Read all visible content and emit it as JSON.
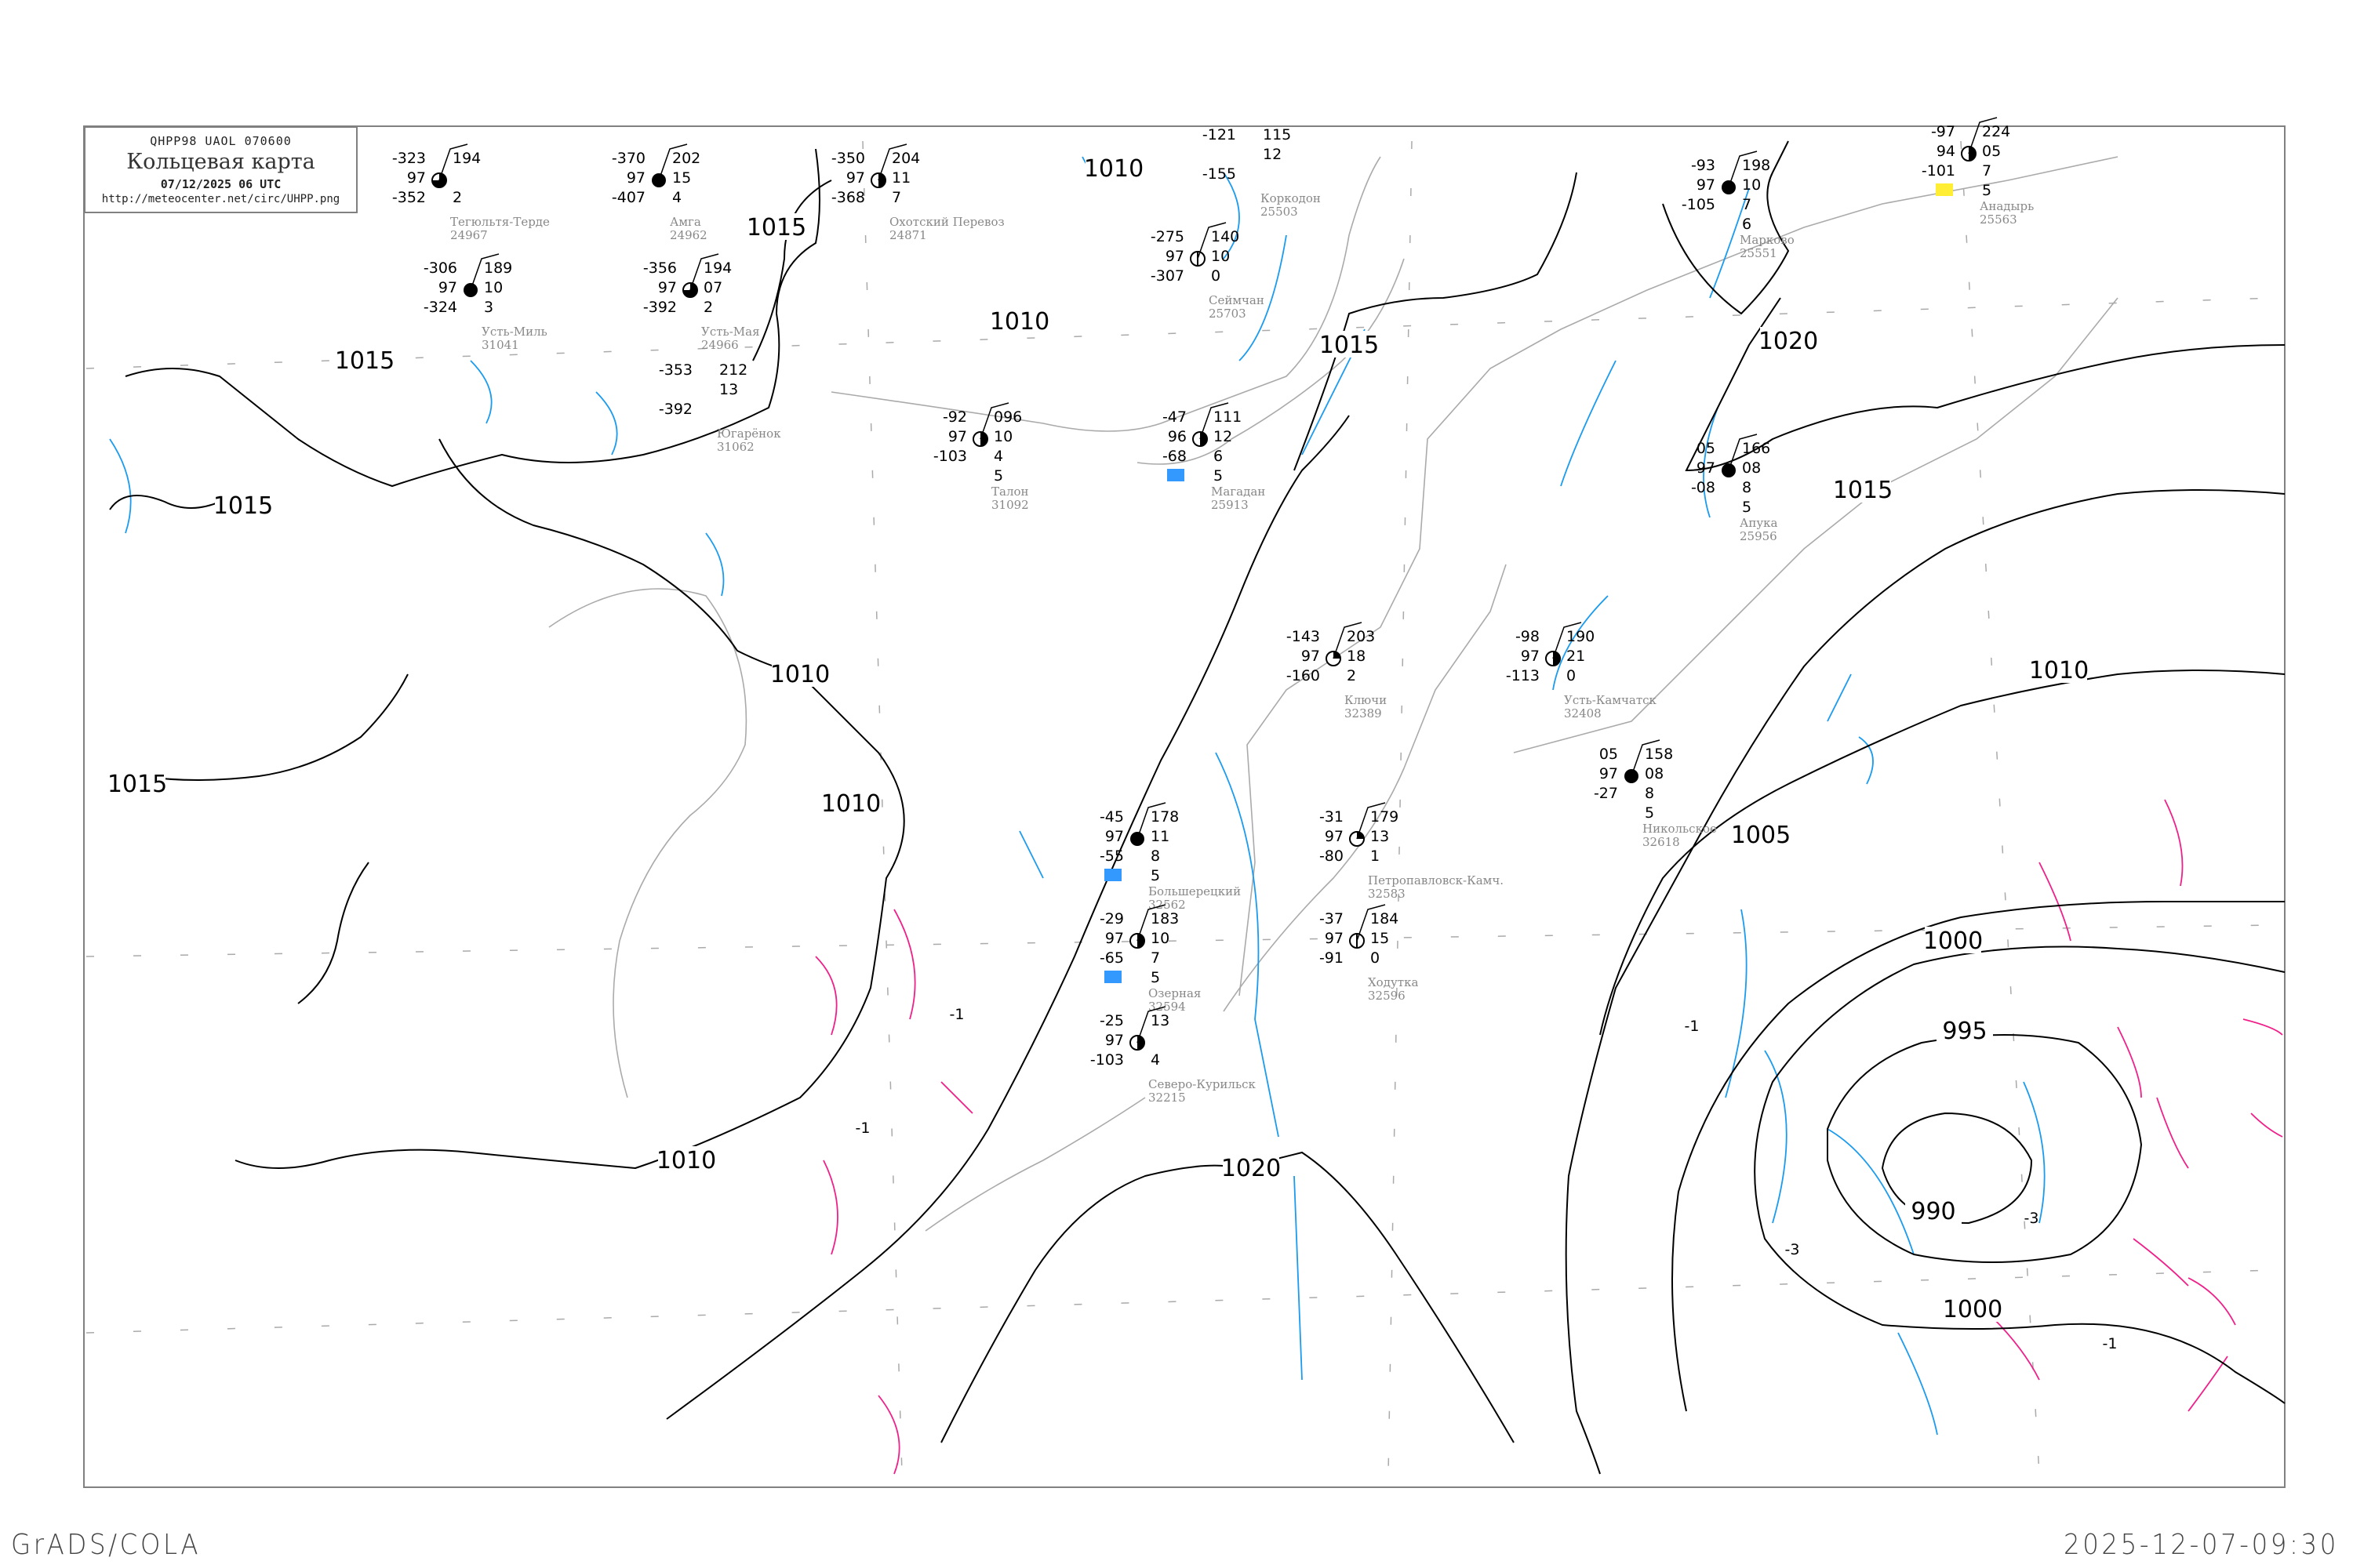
{
  "header": {
    "code_line": "QHPP98   UAOL   070600",
    "title": "Кольцевая карта",
    "datetime": "07/12/2025 06 UTC",
    "url": "http://meteocenter.net/circ/UHPP.png"
  },
  "footer": {
    "left": "GrADS/COLA",
    "right": "2025-12-07-09:30"
  },
  "colors": {
    "isobar": "#000000",
    "coastline": "#aaaaaa",
    "isotherm_negative": "#1a9bef",
    "isotherm_positive": "#f0208a",
    "snow_marker": "#3399ff",
    "frame": "#808080"
  },
  "isobar_labels": [
    "1010",
    "1015",
    "1015",
    "1015",
    "1015",
    "1010",
    "1010",
    "1010",
    "1010",
    "1015",
    "1020",
    "1015",
    "1010",
    "1005",
    "1000",
    "995",
    "990",
    "1000",
    "1020"
  ],
  "isotherm_labels": [
    "-1",
    "-1",
    "-1",
    "-3",
    "-3",
    "-1"
  ],
  "stations": [
    {
      "name": "Анадырь",
      "id": "25563",
      "left": [
        "-97",
        "94",
        "-101"
      ],
      "right": [
        "224",
        "05",
        "7",
        "5"
      ],
      "cloud": "half",
      "marker": "yellow"
    },
    {
      "name": "Марково",
      "id": "25551",
      "left": [
        "-93",
        "97",
        "-105"
      ],
      "right": [
        "198",
        "10",
        "7",
        "6"
      ],
      "cloud": "full"
    },
    {
      "name": "Апука",
      "id": "25956",
      "left": [
        "05",
        "97",
        "-08"
      ],
      "right": [
        "166",
        "08",
        "8",
        "5"
      ],
      "cloud": "full"
    },
    {
      "name": "Коркодон",
      "id": "25503",
      "left": [
        "-121",
        "",
        "-155"
      ],
      "right": [
        "115",
        "12"
      ],
      "cloud": "none"
    },
    {
      "name": "Сеймчан",
      "id": "25703",
      "left": [
        "-275",
        "97",
        "-307"
      ],
      "right": [
        "140",
        "10",
        "0"
      ],
      "cloud": "empty"
    },
    {
      "name": "Магадан",
      "id": "25913",
      "left": [
        "-47",
        "96",
        "-68"
      ],
      "right": [
        "111",
        "12",
        "6",
        "5"
      ],
      "cloud": "half",
      "marker": "blue"
    },
    {
      "name": "Талон",
      "id": "31092",
      "left": [
        "-92",
        "97",
        "-103"
      ],
      "right": [
        "096",
        "10",
        "4",
        "5"
      ],
      "cloud": "half"
    },
    {
      "name": "Охотский Перевоз",
      "id": "24871",
      "left": [
        "-350",
        "97",
        "-368"
      ],
      "right": [
        "204",
        "11",
        "7"
      ],
      "cloud": "half"
    },
    {
      "name": "Тегюльтя-Терде",
      "id": "24967",
      "left": [
        "-323",
        "97",
        "-352"
      ],
      "right": [
        "194",
        "",
        "2"
      ],
      "cloud": "three"
    },
    {
      "name": "Амга",
      "id": "24962",
      "left": [
        "-370",
        "97",
        "-407"
      ],
      "right": [
        "202",
        "15",
        "4"
      ],
      "cloud": "full"
    },
    {
      "name": "Усть-Мая",
      "id": "24966",
      "left": [
        "-356",
        "97",
        "-392"
      ],
      "right": [
        "194",
        "07",
        "2"
      ],
      "cloud": "three"
    },
    {
      "name": "Усть-Миль",
      "id": "31041",
      "left": [
        "-306",
        "97",
        "-324"
      ],
      "right": [
        "189",
        "10",
        "3"
      ],
      "cloud": "full"
    },
    {
      "name": "Югарёнок",
      "id": "31062",
      "left": [
        "-353",
        "",
        "-392"
      ],
      "right": [
        "212",
        "13"
      ],
      "cloud": "none"
    },
    {
      "name": "Ключи",
      "id": "32389",
      "left": [
        "-143",
        "97",
        "-160"
      ],
      "right": [
        "203",
        "18",
        "2"
      ],
      "cloud": "quarter"
    },
    {
      "name": "Усть-Камчатск",
      "id": "32408",
      "left": [
        "-98",
        "97",
        "-113"
      ],
      "right": [
        "190",
        "21",
        "0"
      ],
      "cloud": "half"
    },
    {
      "name": "Никольское",
      "id": "32618",
      "left": [
        "05",
        "97",
        "-27"
      ],
      "right": [
        "158",
        "08",
        "8",
        "5"
      ],
      "cloud": "full"
    },
    {
      "name": "Большерецкий",
      "id": "32562",
      "left": [
        "-45",
        "97",
        "-55"
      ],
      "right": [
        "178",
        "11",
        "8",
        "5"
      ],
      "cloud": "full",
      "marker": "blue"
    },
    {
      "name": "Петропавловск-Камч.",
      "id": "32583",
      "left": [
        "-31",
        "97",
        "-80"
      ],
      "right": [
        "179",
        "13",
        "1"
      ],
      "cloud": "quarter"
    },
    {
      "name": "Ходутка",
      "id": "32596",
      "left": [
        "-37",
        "97",
        "-91"
      ],
      "right": [
        "184",
        "15",
        "0"
      ],
      "cloud": "empty"
    },
    {
      "name": "Озерная",
      "id": "32594",
      "left": [
        "-29",
        "97",
        "-65"
      ],
      "right": [
        "183",
        "10",
        "7",
        "5"
      ],
      "cloud": "half",
      "marker": "blue"
    },
    {
      "name": "Северо-Курильск",
      "id": "32215",
      "left": [
        "-25",
        "97",
        "-103"
      ],
      "right": [
        "13",
        "",
        "4"
      ],
      "cloud": "half"
    }
  ]
}
